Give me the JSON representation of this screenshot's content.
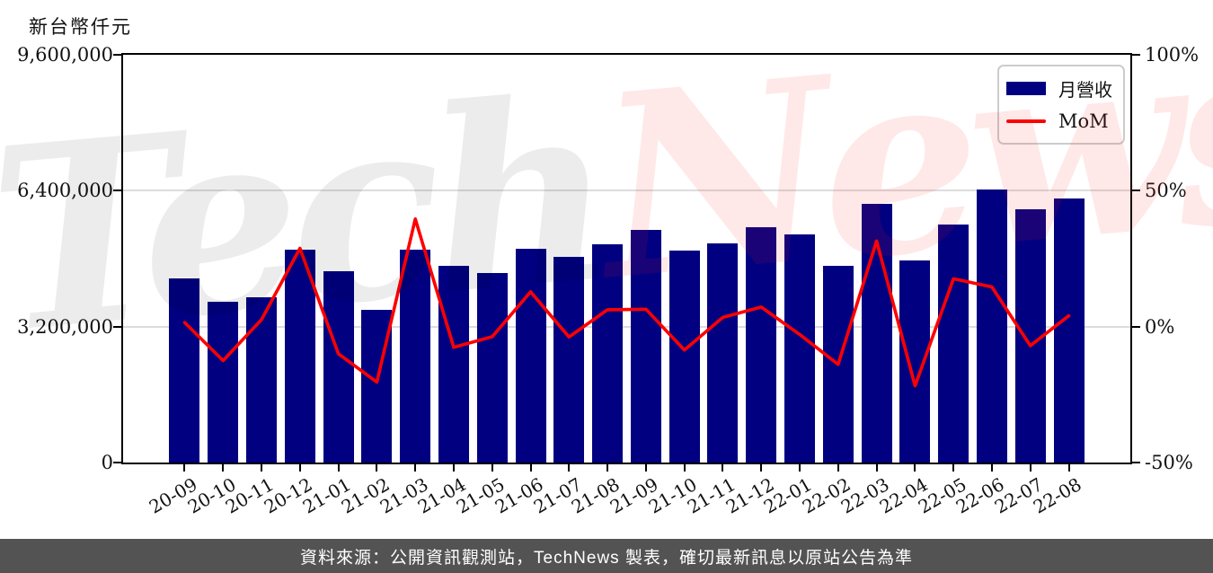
{
  "header": {
    "unit_label": "新台幣仟元"
  },
  "legend": {
    "bar_label": "月營收",
    "line_label": "MoM"
  },
  "watermark": {
    "part1": "Tech",
    "part2": "News"
  },
  "footer": {
    "source_text": "資料來源：公開資訊觀測站，TechNews 製表，確切最新訊息以原站公告為準"
  },
  "colors": {
    "bar": "#000080",
    "line": "#ff0000",
    "grid": "#dcdcdc",
    "spine": "#000000",
    "footer_bg": "#535353",
    "footer_text": "#ffffff"
  },
  "left_axis": {
    "ticks": [
      "9,600,000",
      "6,400,000",
      "3,200,000",
      "0"
    ],
    "min": 0,
    "max": 9600000
  },
  "right_axis": {
    "ticks": [
      "100%",
      "50%",
      "0%",
      "-50%"
    ],
    "min": -50,
    "max": 100
  },
  "chart_data": {
    "type": "bar",
    "title": "",
    "xlabel": "",
    "ylabel_left": "新台幣仟元",
    "ylabel_right": "%",
    "left_ylim": [
      0,
      9600000
    ],
    "right_ylim": [
      -50,
      100
    ],
    "grid": "horizontal",
    "legend_position": "top-right",
    "categories": [
      "20-09",
      "20-10",
      "20-11",
      "20-12",
      "21-01",
      "21-02",
      "21-03",
      "21-04",
      "21-05",
      "21-06",
      "21-07",
      "21-08",
      "21-09",
      "21-10",
      "21-11",
      "21-12",
      "22-01",
      "22-02",
      "22-03",
      "22-04",
      "22-05",
      "22-06",
      "22-07",
      "22-08"
    ],
    "series": [
      {
        "name": "月營收",
        "type": "bar",
        "axis": "left",
        "unit": "新台幣仟元",
        "values": [
          4330000,
          3790000,
          3890000,
          5010000,
          4510000,
          3590000,
          5010000,
          4630000,
          4460000,
          5030000,
          4840000,
          5140000,
          5470000,
          5000000,
          5170000,
          5540000,
          5380000,
          4630000,
          6090000,
          4760000,
          5600000,
          6420000,
          5970000,
          6210000
        ]
      },
      {
        "name": "MoM",
        "type": "line",
        "axis": "right",
        "unit": "%",
        "values": [
          1.5,
          -12.5,
          2.6,
          28.8,
          -10.0,
          -20.4,
          39.6,
          -7.6,
          -3.7,
          12.8,
          -3.8,
          6.2,
          6.4,
          -8.6,
          3.4,
          7.2,
          -2.9,
          -13.9,
          31.5,
          -21.8,
          17.6,
          14.6,
          -7.0,
          4.0
        ]
      }
    ]
  }
}
